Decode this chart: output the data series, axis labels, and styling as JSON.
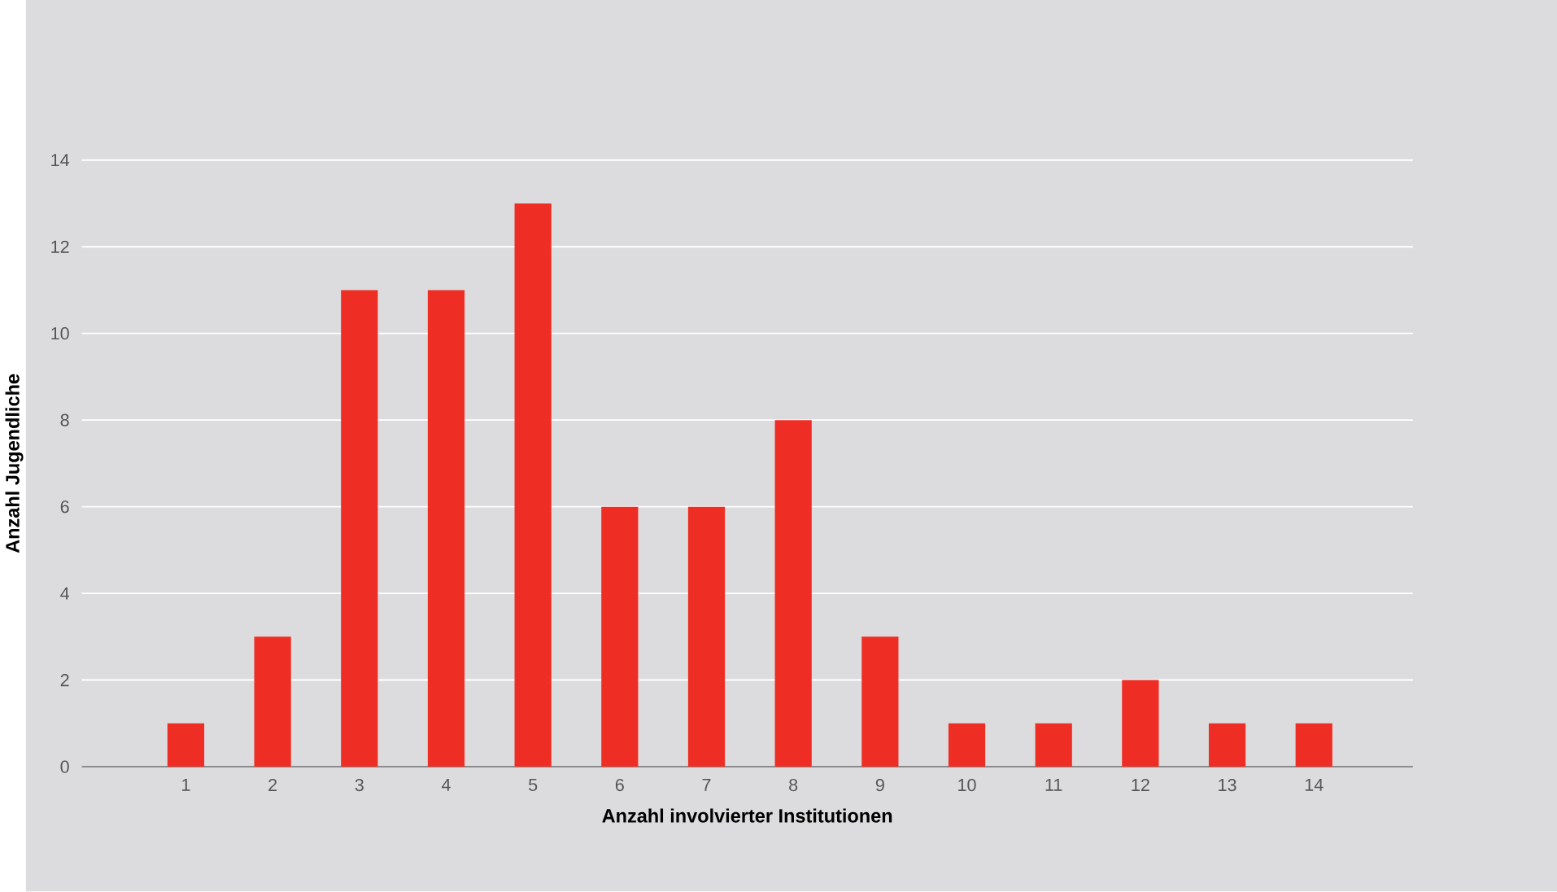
{
  "chart_data": {
    "type": "bar",
    "xlabel": "Anzahl involvierter Institutionen",
    "ylabel": "Anzahl Jugendliche",
    "categories": [
      "1",
      "2",
      "3",
      "4",
      "5",
      "6",
      "7",
      "8",
      "9",
      "10",
      "11",
      "12",
      "13",
      "14"
    ],
    "values": [
      1,
      3,
      11,
      11,
      13,
      6,
      6,
      8,
      3,
      1,
      1,
      2,
      1,
      1
    ],
    "color": "#ee2e24",
    "ylim": [
      0,
      14
    ],
    "yticks": [
      0,
      2,
      4,
      6,
      8,
      10,
      12,
      14
    ],
    "grid": "y"
  }
}
